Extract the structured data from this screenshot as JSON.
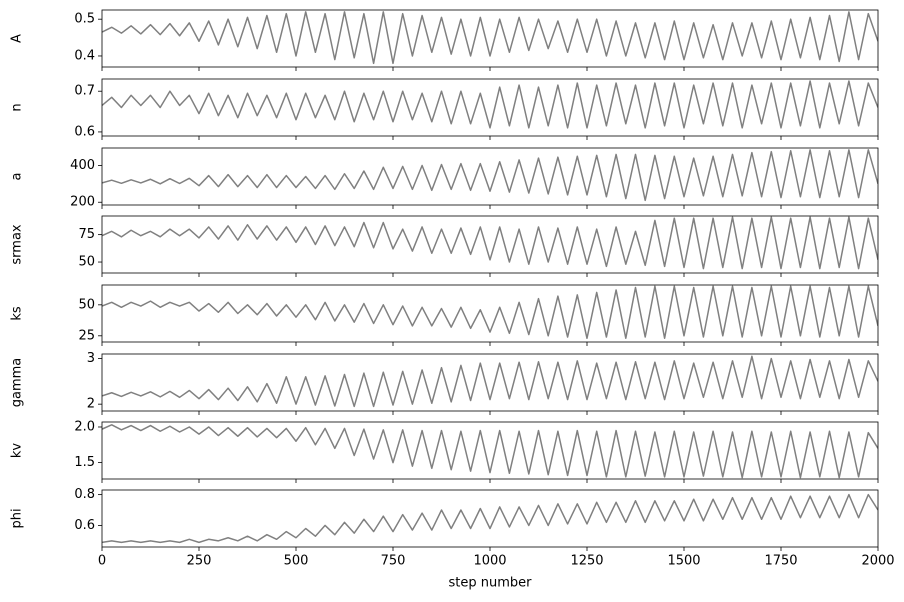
{
  "chart_data": {
    "type": "line",
    "xlabel": "step number",
    "color": "#808080",
    "xlim": [
      0,
      2000
    ],
    "xticks": [
      0,
      250,
      500,
      750,
      1000,
      1250,
      1500,
      1750,
      2000
    ],
    "x": [
      0,
      25,
      50,
      75,
      100,
      125,
      150,
      175,
      200,
      225,
      250,
      275,
      300,
      325,
      350,
      375,
      400,
      425,
      450,
      475,
      500,
      525,
      550,
      575,
      600,
      625,
      650,
      675,
      700,
      725,
      750,
      775,
      800,
      825,
      850,
      875,
      900,
      925,
      950,
      975,
      1000,
      1025,
      1050,
      1075,
      1100,
      1125,
      1150,
      1175,
      1200,
      1225,
      1250,
      1275,
      1300,
      1325,
      1350,
      1375,
      1400,
      1425,
      1450,
      1475,
      1500,
      1525,
      1550,
      1575,
      1600,
      1625,
      1650,
      1675,
      1700,
      1725,
      1750,
      1775,
      1800,
      1825,
      1850,
      1875,
      1900,
      1925,
      1950,
      1975,
      2000
    ],
    "panels": [
      {
        "ylabel": "A",
        "ylim": [
          0.37,
          0.525
        ],
        "yticks": [
          0.4,
          0.5
        ],
        "values": [
          0.465,
          0.478,
          0.462,
          0.482,
          0.46,
          0.485,
          0.458,
          0.488,
          0.455,
          0.49,
          0.44,
          0.495,
          0.43,
          0.5,
          0.425,
          0.505,
          0.42,
          0.51,
          0.41,
          0.515,
          0.4,
          0.52,
          0.41,
          0.515,
          0.39,
          0.52,
          0.395,
          0.515,
          0.38,
          0.52,
          0.38,
          0.515,
          0.4,
          0.51,
          0.41,
          0.505,
          0.405,
          0.5,
          0.4,
          0.505,
          0.4,
          0.5,
          0.41,
          0.505,
          0.415,
          0.5,
          0.42,
          0.495,
          0.41,
          0.5,
          0.41,
          0.5,
          0.4,
          0.495,
          0.4,
          0.49,
          0.395,
          0.49,
          0.39,
          0.495,
          0.39,
          0.49,
          0.395,
          0.485,
          0.39,
          0.49,
          0.4,
          0.49,
          0.395,
          0.495,
          0.39,
          0.5,
          0.395,
          0.505,
          0.39,
          0.51,
          0.385,
          0.52,
          0.39,
          0.515,
          0.44
        ]
      },
      {
        "ylabel": "n",
        "ylim": [
          0.59,
          0.73
        ],
        "yticks": [
          0.6,
          0.7
        ],
        "values": [
          0.665,
          0.685,
          0.66,
          0.69,
          0.665,
          0.69,
          0.66,
          0.7,
          0.665,
          0.69,
          0.645,
          0.695,
          0.64,
          0.69,
          0.635,
          0.695,
          0.64,
          0.69,
          0.635,
          0.695,
          0.63,
          0.695,
          0.635,
          0.69,
          0.63,
          0.7,
          0.625,
          0.695,
          0.63,
          0.7,
          0.625,
          0.7,
          0.63,
          0.695,
          0.625,
          0.7,
          0.62,
          0.7,
          0.62,
          0.695,
          0.61,
          0.71,
          0.615,
          0.715,
          0.61,
          0.71,
          0.615,
          0.715,
          0.61,
          0.72,
          0.61,
          0.715,
          0.615,
          0.72,
          0.62,
          0.715,
          0.61,
          0.72,
          0.615,
          0.72,
          0.61,
          0.715,
          0.62,
          0.72,
          0.615,
          0.72,
          0.61,
          0.715,
          0.62,
          0.72,
          0.61,
          0.72,
          0.615,
          0.725,
          0.61,
          0.72,
          0.62,
          0.725,
          0.615,
          0.72,
          0.66
        ]
      },
      {
        "ylabel": "a",
        "ylim": [
          185,
          495
        ],
        "yticks": [
          200,
          400
        ],
        "values": [
          305,
          320,
          303,
          322,
          305,
          325,
          300,
          328,
          302,
          330,
          290,
          345,
          285,
          350,
          285,
          345,
          280,
          350,
          280,
          345,
          280,
          340,
          275,
          345,
          270,
          355,
          275,
          370,
          270,
          390,
          275,
          395,
          270,
          400,
          265,
          405,
          270,
          410,
          265,
          410,
          260,
          420,
          255,
          430,
          250,
          440,
          245,
          445,
          240,
          450,
          240,
          455,
          230,
          460,
          220,
          460,
          210,
          455,
          220,
          450,
          230,
          440,
          235,
          450,
          230,
          460,
          235,
          470,
          230,
          475,
          225,
          480,
          230,
          485,
          225,
          480,
          230,
          485,
          225,
          485,
          300
        ]
      },
      {
        "ylabel": "srmax",
        "ylim": [
          40,
          92
        ],
        "yticks": [
          50,
          75
        ],
        "values": [
          74,
          78,
          73,
          79,
          74,
          78,
          73,
          80,
          74,
          80,
          72,
          82,
          71,
          83,
          70,
          84,
          71,
          83,
          70,
          82,
          68,
          82,
          66,
          83,
          65,
          82,
          64,
          86,
          63,
          86,
          62,
          80,
          60,
          82,
          58,
          80,
          58,
          81,
          57,
          82,
          52,
          82,
          50,
          80,
          48,
          82,
          50,
          81,
          48,
          82,
          48,
          80,
          46,
          82,
          48,
          78,
          47,
          88,
          46,
          90,
          45,
          90,
          44,
          90,
          45,
          91,
          44,
          90,
          45,
          91,
          44,
          90,
          45,
          91,
          44,
          90,
          45,
          91,
          44,
          90,
          52
        ]
      },
      {
        "ylabel": "ks",
        "ylim": [
          20,
          66
        ],
        "yticks": [
          25,
          50
        ],
        "values": [
          49,
          52,
          48,
          52,
          49,
          53,
          48,
          52,
          49,
          52,
          45,
          51,
          44,
          52,
          43,
          50,
          42,
          51,
          41,
          50,
          40,
          50,
          38,
          52,
          37,
          50,
          36,
          51,
          35,
          50,
          34,
          49,
          33,
          48,
          33,
          47,
          32,
          48,
          31,
          46,
          28,
          48,
          27,
          52,
          26,
          55,
          25,
          57,
          24,
          58,
          23,
          60,
          24,
          62,
          23,
          64,
          24,
          65,
          23,
          65,
          25,
          64,
          24,
          65,
          25,
          65,
          24,
          64,
          25,
          65,
          24,
          65,
          25,
          65,
          24,
          64,
          25,
          65,
          24,
          65,
          33
        ]
      },
      {
        "ylabel": "gamma",
        "ylim": [
          1.85,
          3.1
        ],
        "yticks": [
          2,
          3
        ],
        "values": [
          2.18,
          2.25,
          2.17,
          2.26,
          2.18,
          2.27,
          2.16,
          2.28,
          2.15,
          2.3,
          2.12,
          2.32,
          2.1,
          2.35,
          2.08,
          2.38,
          2.05,
          2.45,
          2.02,
          2.6,
          2.0,
          2.6,
          1.98,
          2.62,
          1.96,
          2.65,
          1.95,
          2.68,
          1.95,
          2.7,
          1.98,
          2.72,
          2.0,
          2.75,
          2.02,
          2.8,
          2.05,
          2.85,
          2.08,
          2.9,
          2.1,
          2.9,
          2.12,
          2.92,
          2.1,
          2.93,
          2.12,
          2.92,
          2.1,
          2.95,
          2.1,
          2.9,
          2.12,
          2.92,
          2.1,
          2.93,
          2.12,
          2.92,
          2.1,
          2.95,
          2.12,
          2.9,
          2.15,
          2.92,
          2.12,
          2.95,
          2.15,
          3.05,
          2.12,
          3.0,
          2.15,
          2.95,
          2.12,
          2.98,
          2.15,
          2.95,
          2.12,
          2.98,
          2.15,
          2.95,
          2.5
        ]
      },
      {
        "ylabel": "kv",
        "ylim": [
          1.27,
          2.07
        ],
        "yticks": [
          1.5,
          {
            "value": 2,
            "label": "2.0"
          }
        ],
        "values": [
          1.97,
          2.03,
          1.96,
          2.02,
          1.95,
          2.02,
          1.94,
          2.01,
          1.93,
          2.0,
          1.9,
          2.0,
          1.88,
          1.99,
          1.87,
          1.99,
          1.86,
          1.98,
          1.85,
          1.98,
          1.8,
          1.99,
          1.75,
          1.98,
          1.7,
          1.98,
          1.6,
          1.97,
          1.55,
          1.96,
          1.5,
          1.96,
          1.45,
          1.95,
          1.42,
          1.95,
          1.4,
          1.94,
          1.38,
          1.95,
          1.36,
          1.95,
          1.35,
          1.94,
          1.34,
          1.95,
          1.33,
          1.94,
          1.32,
          1.95,
          1.32,
          1.94,
          1.3,
          1.95,
          1.3,
          1.94,
          1.31,
          1.93,
          1.3,
          1.94,
          1.3,
          1.93,
          1.31,
          1.94,
          1.3,
          1.93,
          1.29,
          1.94,
          1.3,
          1.93,
          1.3,
          1.94,
          1.29,
          1.93,
          1.3,
          1.94,
          1.29,
          1.93,
          1.3,
          1.92,
          1.7
        ]
      },
      {
        "ylabel": "phi",
        "ylim": [
          0.46,
          0.83
        ],
        "yticks": [
          0.6,
          0.8
        ],
        "values": [
          0.49,
          0.5,
          0.49,
          0.5,
          0.49,
          0.5,
          0.49,
          0.5,
          0.49,
          0.51,
          0.49,
          0.51,
          0.5,
          0.52,
          0.5,
          0.53,
          0.5,
          0.54,
          0.51,
          0.56,
          0.52,
          0.58,
          0.53,
          0.6,
          0.54,
          0.62,
          0.55,
          0.64,
          0.56,
          0.66,
          0.56,
          0.67,
          0.57,
          0.68,
          0.57,
          0.7,
          0.58,
          0.7,
          0.58,
          0.71,
          0.58,
          0.72,
          0.59,
          0.72,
          0.6,
          0.73,
          0.6,
          0.74,
          0.61,
          0.74,
          0.61,
          0.75,
          0.62,
          0.75,
          0.62,
          0.76,
          0.62,
          0.76,
          0.63,
          0.76,
          0.63,
          0.77,
          0.63,
          0.77,
          0.64,
          0.78,
          0.64,
          0.78,
          0.64,
          0.78,
          0.64,
          0.79,
          0.65,
          0.79,
          0.65,
          0.79,
          0.65,
          0.8,
          0.65,
          0.8,
          0.7
        ]
      }
    ]
  }
}
